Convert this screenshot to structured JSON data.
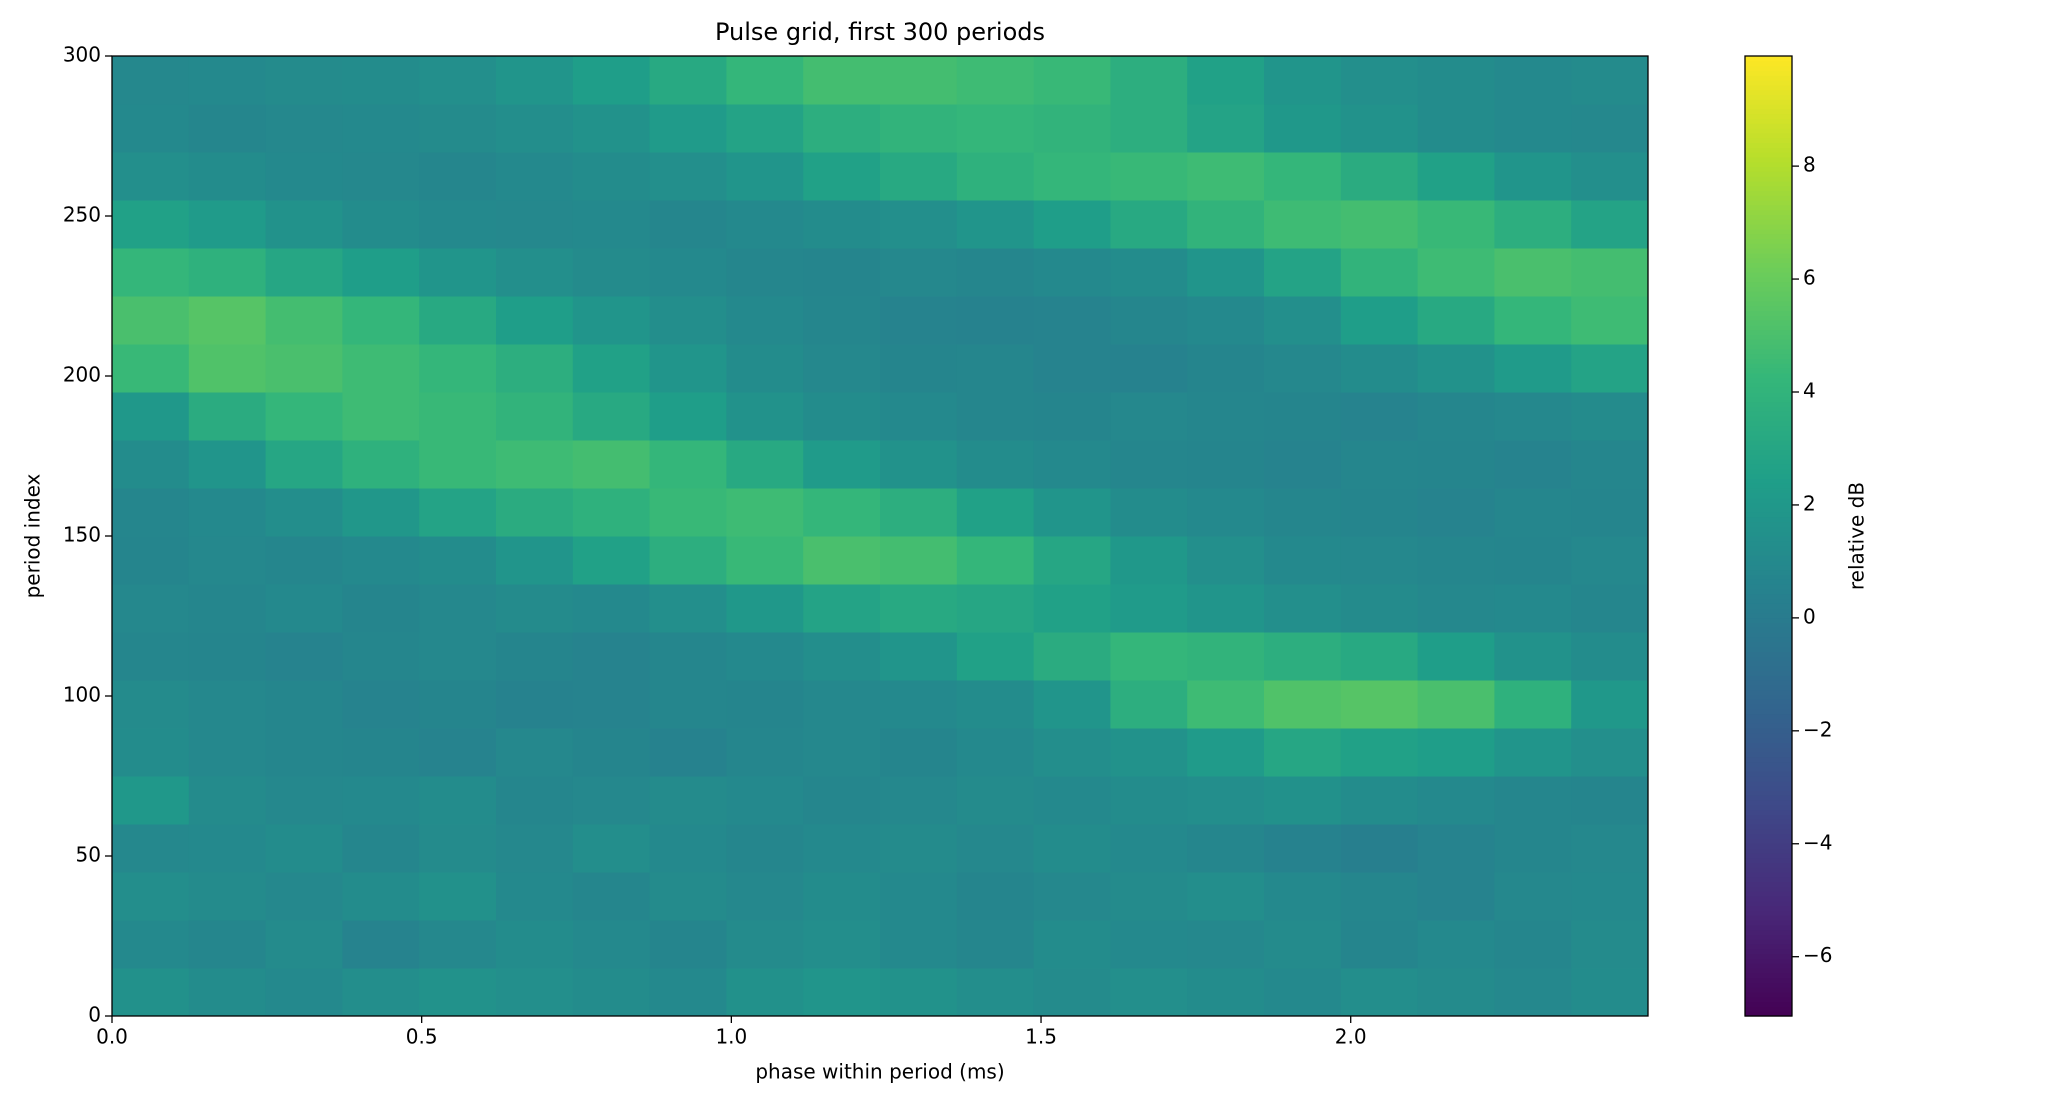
{
  "chart_data": {
    "type": "heatmap",
    "title": "Pulse grid, first 300 periods",
    "x_label": "phase within period (ms)",
    "y_label": "period index",
    "colorbar_label": "relative dB",
    "colormap": "viridis",
    "xlim": [
      0,
      2.48
    ],
    "ylim": [
      0,
      300
    ],
    "clim": [
      -7.05,
      9.95
    ],
    "xticks": [
      {
        "value": 0,
        "label": "0.0"
      },
      0.5,
      {
        "value": 1,
        "label": "1.0"
      },
      1.5,
      {
        "value": 2,
        "label": "2.0"
      }
    ],
    "yticks": [
      0,
      50,
      100,
      150,
      200,
      250,
      300
    ],
    "cticks": [
      {
        "value": -6,
        "label": "−6"
      },
      {
        "value": -4,
        "label": "−4"
      },
      {
        "value": -2,
        "label": "−2"
      },
      0,
      2,
      4,
      6,
      8
    ],
    "x_bins": [
      0,
      0.124,
      0.248,
      0.372,
      0.496,
      0.62,
      0.744,
      0.868,
      0.992,
      1.116,
      1.24,
      1.364,
      1.488,
      1.612,
      1.736,
      1.86,
      1.984,
      2.108,
      2.232,
      2.356,
      2.48
    ],
    "y_bins": [
      0,
      15,
      30,
      45,
      60,
      75,
      90,
      105,
      120,
      135,
      150,
      165,
      180,
      195,
      210,
      225,
      240,
      255,
      270,
      285,
      300
    ],
    "z": [
      [
        1.5,
        1.2,
        1.0,
        1.3,
        1.6,
        1.4,
        1.2,
        1.0,
        1.5,
        1.8,
        1.6,
        1.3,
        1.1,
        1.4,
        1.2,
        1.0,
        1.3,
        1.1,
        0.9,
        1.2
      ],
      [
        1.0,
        0.8,
        1.1,
        0.6,
        0.9,
        1.2,
        1.0,
        0.7,
        1.1,
        1.3,
        1.0,
        0.8,
        1.2,
        1.0,
        0.9,
        1.1,
        0.7,
        1.0,
        0.8,
        1.1
      ],
      [
        1.3,
        1.1,
        0.9,
        1.2,
        1.5,
        1.0,
        0.8,
        1.1,
        0.9,
        1.2,
        1.0,
        0.7,
        0.9,
        1.1,
        1.3,
        1.0,
        0.8,
        0.6,
        0.9,
        1.0
      ],
      [
        0.9,
        1.0,
        1.2,
        0.8,
        1.1,
        0.9,
        1.3,
        1.0,
        0.8,
        1.0,
        1.1,
        0.9,
        1.2,
        1.0,
        0.8,
        0.5,
        0.3,
        0.6,
        0.8,
        0.9
      ],
      [
        2.0,
        1.1,
        0.9,
        1.0,
        1.2,
        0.8,
        0.9,
        1.1,
        1.0,
        0.8,
        0.9,
        1.1,
        1.0,
        1.2,
        1.3,
        1.5,
        1.2,
        1.0,
        0.8,
        0.7
      ],
      [
        1.2,
        0.9,
        0.8,
        0.7,
        0.6,
        0.9,
        0.7,
        0.5,
        0.8,
        0.9,
        0.7,
        1.0,
        1.3,
        1.6,
        2.2,
        3.0,
        2.6,
        2.4,
        1.8,
        1.4
      ],
      [
        1.1,
        0.9,
        0.8,
        0.6,
        0.7,
        0.5,
        0.6,
        0.8,
        0.7,
        0.9,
        1.0,
        1.2,
        1.8,
        3.6,
        4.6,
        5.2,
        5.4,
        5.0,
        3.8,
        2.0
      ],
      [
        0.8,
        0.7,
        0.6,
        0.8,
        0.9,
        0.7,
        0.6,
        0.8,
        1.0,
        1.3,
        1.8,
        2.6,
        3.4,
        4.2,
        4.0,
        3.6,
        3.2,
        2.4,
        1.6,
        1.2
      ],
      [
        0.9,
        0.8,
        1.0,
        0.7,
        0.9,
        1.1,
        1.0,
        1.4,
        2.0,
        2.8,
        3.2,
        3.0,
        2.6,
        2.2,
        1.8,
        1.4,
        1.1,
        0.9,
        1.0,
        0.8
      ],
      [
        0.7,
        0.9,
        0.8,
        1.0,
        1.2,
        1.8,
        2.6,
        3.6,
        4.4,
        5.0,
        4.8,
        4.2,
        3.0,
        2.0,
        1.4,
        1.0,
        0.9,
        0.8,
        0.7,
        0.9
      ],
      [
        0.8,
        1.0,
        1.3,
        1.9,
        2.8,
        3.4,
        3.8,
        4.4,
        4.6,
        4.2,
        3.6,
        2.6,
        1.8,
        1.2,
        1.0,
        0.8,
        0.7,
        0.6,
        0.8,
        0.7
      ],
      [
        1.2,
        1.8,
        3.0,
        3.8,
        4.4,
        4.6,
        4.8,
        4.2,
        3.2,
        2.2,
        1.6,
        1.2,
        1.0,
        0.8,
        0.7,
        0.6,
        0.8,
        0.7,
        0.6,
        0.8
      ],
      [
        2.0,
        3.4,
        4.2,
        4.6,
        4.4,
        4.0,
        3.2,
        2.4,
        1.6,
        1.2,
        1.0,
        0.8,
        0.7,
        0.9,
        0.8,
        0.7,
        0.6,
        0.8,
        0.9,
        1.1
      ],
      [
        4.4,
        5.2,
        5.0,
        4.6,
        4.2,
        3.6,
        2.6,
        1.8,
        1.2,
        0.9,
        0.7,
        0.8,
        0.6,
        0.5,
        0.7,
        0.9,
        1.2,
        1.6,
        2.2,
        2.8
      ],
      [
        5.0,
        5.4,
        4.8,
        4.2,
        3.2,
        2.4,
        1.8,
        1.3,
        1.0,
        0.8,
        0.6,
        0.5,
        0.6,
        0.8,
        1.0,
        1.4,
        2.4,
        3.2,
        4.2,
        4.6
      ],
      [
        4.2,
        3.8,
        3.0,
        2.4,
        1.8,
        1.4,
        1.1,
        1.0,
        0.8,
        0.7,
        0.9,
        0.8,
        1.0,
        1.2,
        1.8,
        2.8,
        4.0,
        4.6,
        5.0,
        4.8
      ],
      [
        2.6,
        2.2,
        1.6,
        1.2,
        1.0,
        0.9,
        1.0,
        0.8,
        1.0,
        1.2,
        1.4,
        1.8,
        2.4,
        3.2,
        4.0,
        4.6,
        4.8,
        4.4,
        3.6,
        2.8
      ],
      [
        1.4,
        1.2,
        1.0,
        0.9,
        0.8,
        1.0,
        1.2,
        1.4,
        1.8,
        2.6,
        3.2,
        3.8,
        4.2,
        4.4,
        4.6,
        4.2,
        3.4,
        2.6,
        1.8,
        1.4
      ],
      [
        1.0,
        0.8,
        0.9,
        1.0,
        1.1,
        1.3,
        1.6,
        2.2,
        2.8,
        3.6,
        4.0,
        4.2,
        4.0,
        3.6,
        2.8,
        2.0,
        1.6,
        1.2,
        1.0,
        0.9
      ],
      [
        0.9,
        1.0,
        1.1,
        1.2,
        1.4,
        1.8,
        2.4,
        3.2,
        4.2,
        4.8,
        4.8,
        4.6,
        4.4,
        3.6,
        2.6,
        1.8,
        1.4,
        1.2,
        1.0,
        1.1
      ]
    ]
  }
}
